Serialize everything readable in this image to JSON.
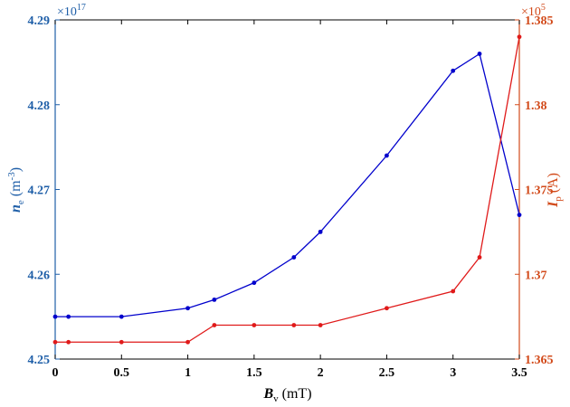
{
  "chart_data": {
    "type": "line",
    "x": [
      0,
      0.1,
      0.5,
      1.0,
      1.2,
      1.5,
      1.8,
      2.0,
      2.5,
      3.0,
      3.2,
      3.5
    ],
    "xlim": [
      0,
      3.5
    ],
    "xticks": [
      "0",
      "0.5",
      "1",
      "1.5",
      "2",
      "2.5",
      "3",
      "3.5"
    ],
    "xlabel": {
      "symbol": "B",
      "sub": "v",
      "unit": " (mT)"
    },
    "left_axis": {
      "ylim": [
        4.25,
        4.29
      ],
      "ticks": [
        "4.25",
        "4.26",
        "4.27",
        "4.28",
        "4.29"
      ],
      "multiplier": "×10",
      "exponent": "17",
      "label": {
        "symbol": "n",
        "sub": "e",
        "unit": " (m",
        "sup": "-3",
        "close": ")"
      },
      "color": "#1f5fa8"
    },
    "right_axis": {
      "ylim": [
        1.365,
        1.385
      ],
      "ticks": [
        "1.365",
        "1.37",
        "1.375",
        "1.38",
        "1.385"
      ],
      "multiplier": "×10",
      "exponent": "5",
      "label": {
        "symbol": "I",
        "sub": "p",
        "unit": " (A)"
      },
      "color": "#d24a1a"
    },
    "series": [
      {
        "axis": "left",
        "color": "#0000cc",
        "values": [
          4.255,
          4.255,
          4.255,
          4.256,
          4.257,
          4.259,
          4.262,
          4.265,
          4.274,
          4.284,
          4.286,
          4.267
        ]
      },
      {
        "axis": "right",
        "color": "#e01a1a",
        "values": [
          1.366,
          1.366,
          1.366,
          1.366,
          1.367,
          1.367,
          1.367,
          1.367,
          1.368,
          1.369,
          1.371,
          1.384
        ]
      }
    ],
    "grid": false
  }
}
